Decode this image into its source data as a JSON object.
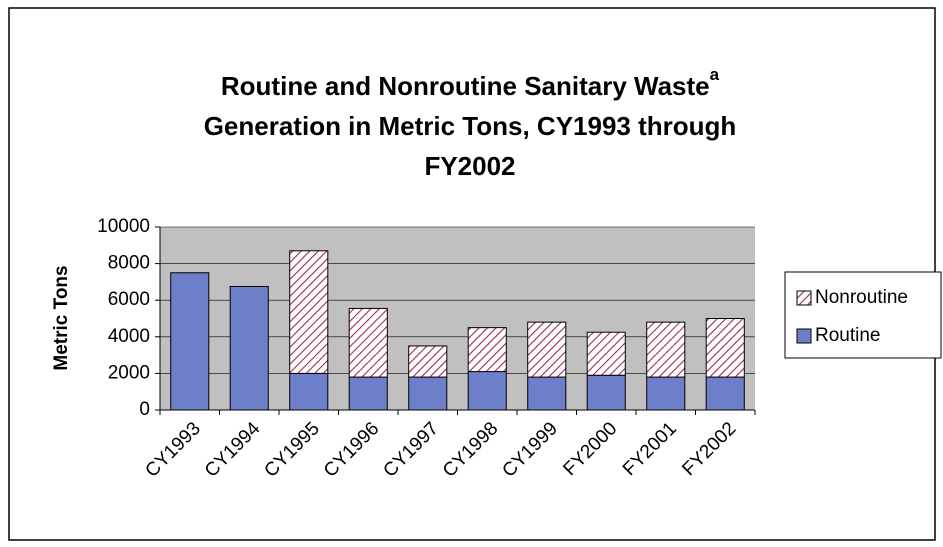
{
  "chart_data": {
    "type": "stacked_bar",
    "title": [
      "Routine and Nonroutine Sanitary Waste",
      "Generation in Metric Tons, CY1993 through",
      "FY2002"
    ],
    "title_superscript": "a",
    "y_label": "Metric Tons",
    "categories": [
      "CY1993",
      "CY1994",
      "CY1995",
      "CY1996",
      "CY1997",
      "CY1998",
      "CY1999",
      "FY2000",
      "FY2001",
      "FY2002"
    ],
    "series": [
      {
        "name": "Routine",
        "color": "#6d7fc9",
        "values": [
          7500,
          6750,
          2000,
          1800,
          1800,
          2100,
          1800,
          1900,
          1800,
          1800
        ]
      },
      {
        "name": "Nonroutine",
        "color": "#9c2a5a",
        "pattern": "hatch",
        "values": [
          0,
          0,
          6700,
          3750,
          1700,
          2400,
          3000,
          2350,
          3000,
          3200
        ]
      }
    ],
    "ylim": [
      0,
      10000
    ],
    "yticks": [
      0,
      2000,
      4000,
      6000,
      8000,
      10000
    ],
    "grid": true,
    "legend": "right"
  }
}
